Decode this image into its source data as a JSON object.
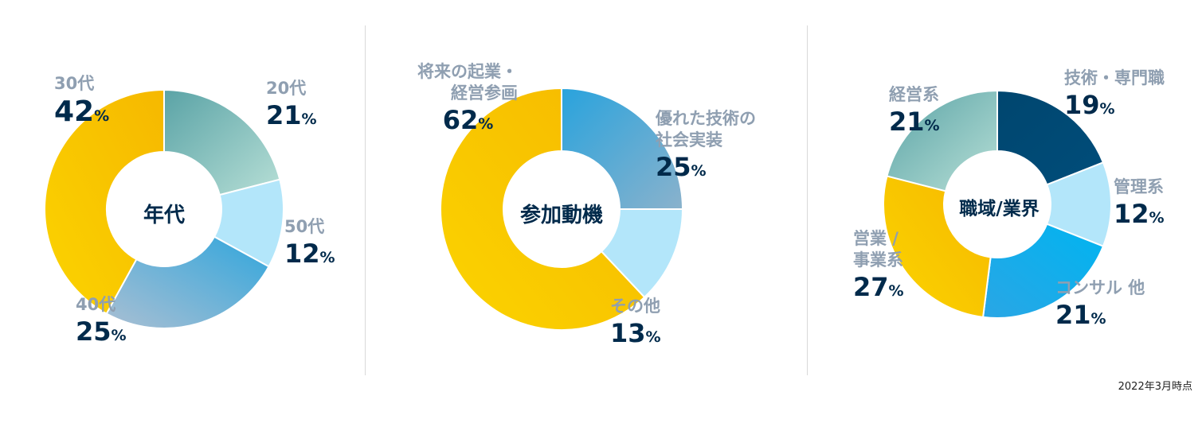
{
  "chart_data": [
    {
      "type": "pie",
      "title": "年代",
      "slices": [
        {
          "label": "20代",
          "value": 21,
          "display": "21"
        },
        {
          "label": "50代",
          "value": 12,
          "display": "12"
        },
        {
          "label": "40代",
          "value": 25,
          "display": "25"
        },
        {
          "label": "30代",
          "value": 42,
          "display": "42"
        }
      ]
    },
    {
      "type": "pie",
      "title": "参加動機",
      "slices": [
        {
          "label": "優れた技術の\n社会実装",
          "value": 25,
          "display": "25"
        },
        {
          "label": "その他",
          "value": 13,
          "display": "13"
        },
        {
          "label": "将来の起業・\n経営参画",
          "value": 62,
          "display": "62"
        }
      ]
    },
    {
      "type": "pie",
      "title": "職域/業界",
      "slices": [
        {
          "label": "技術・専門職",
          "value": 19,
          "display": "19"
        },
        {
          "label": "管理系",
          "value": 12,
          "display": "12"
        },
        {
          "label": "コンサル 他",
          "value": 21,
          "display": "21"
        },
        {
          "label": "営業 /\n事業系",
          "value": 27,
          "display": "27"
        },
        {
          "label": "経営系",
          "value": 21,
          "display": "21"
        }
      ]
    }
  ],
  "percent_sign": "%",
  "footnote": "2022年3月時点"
}
